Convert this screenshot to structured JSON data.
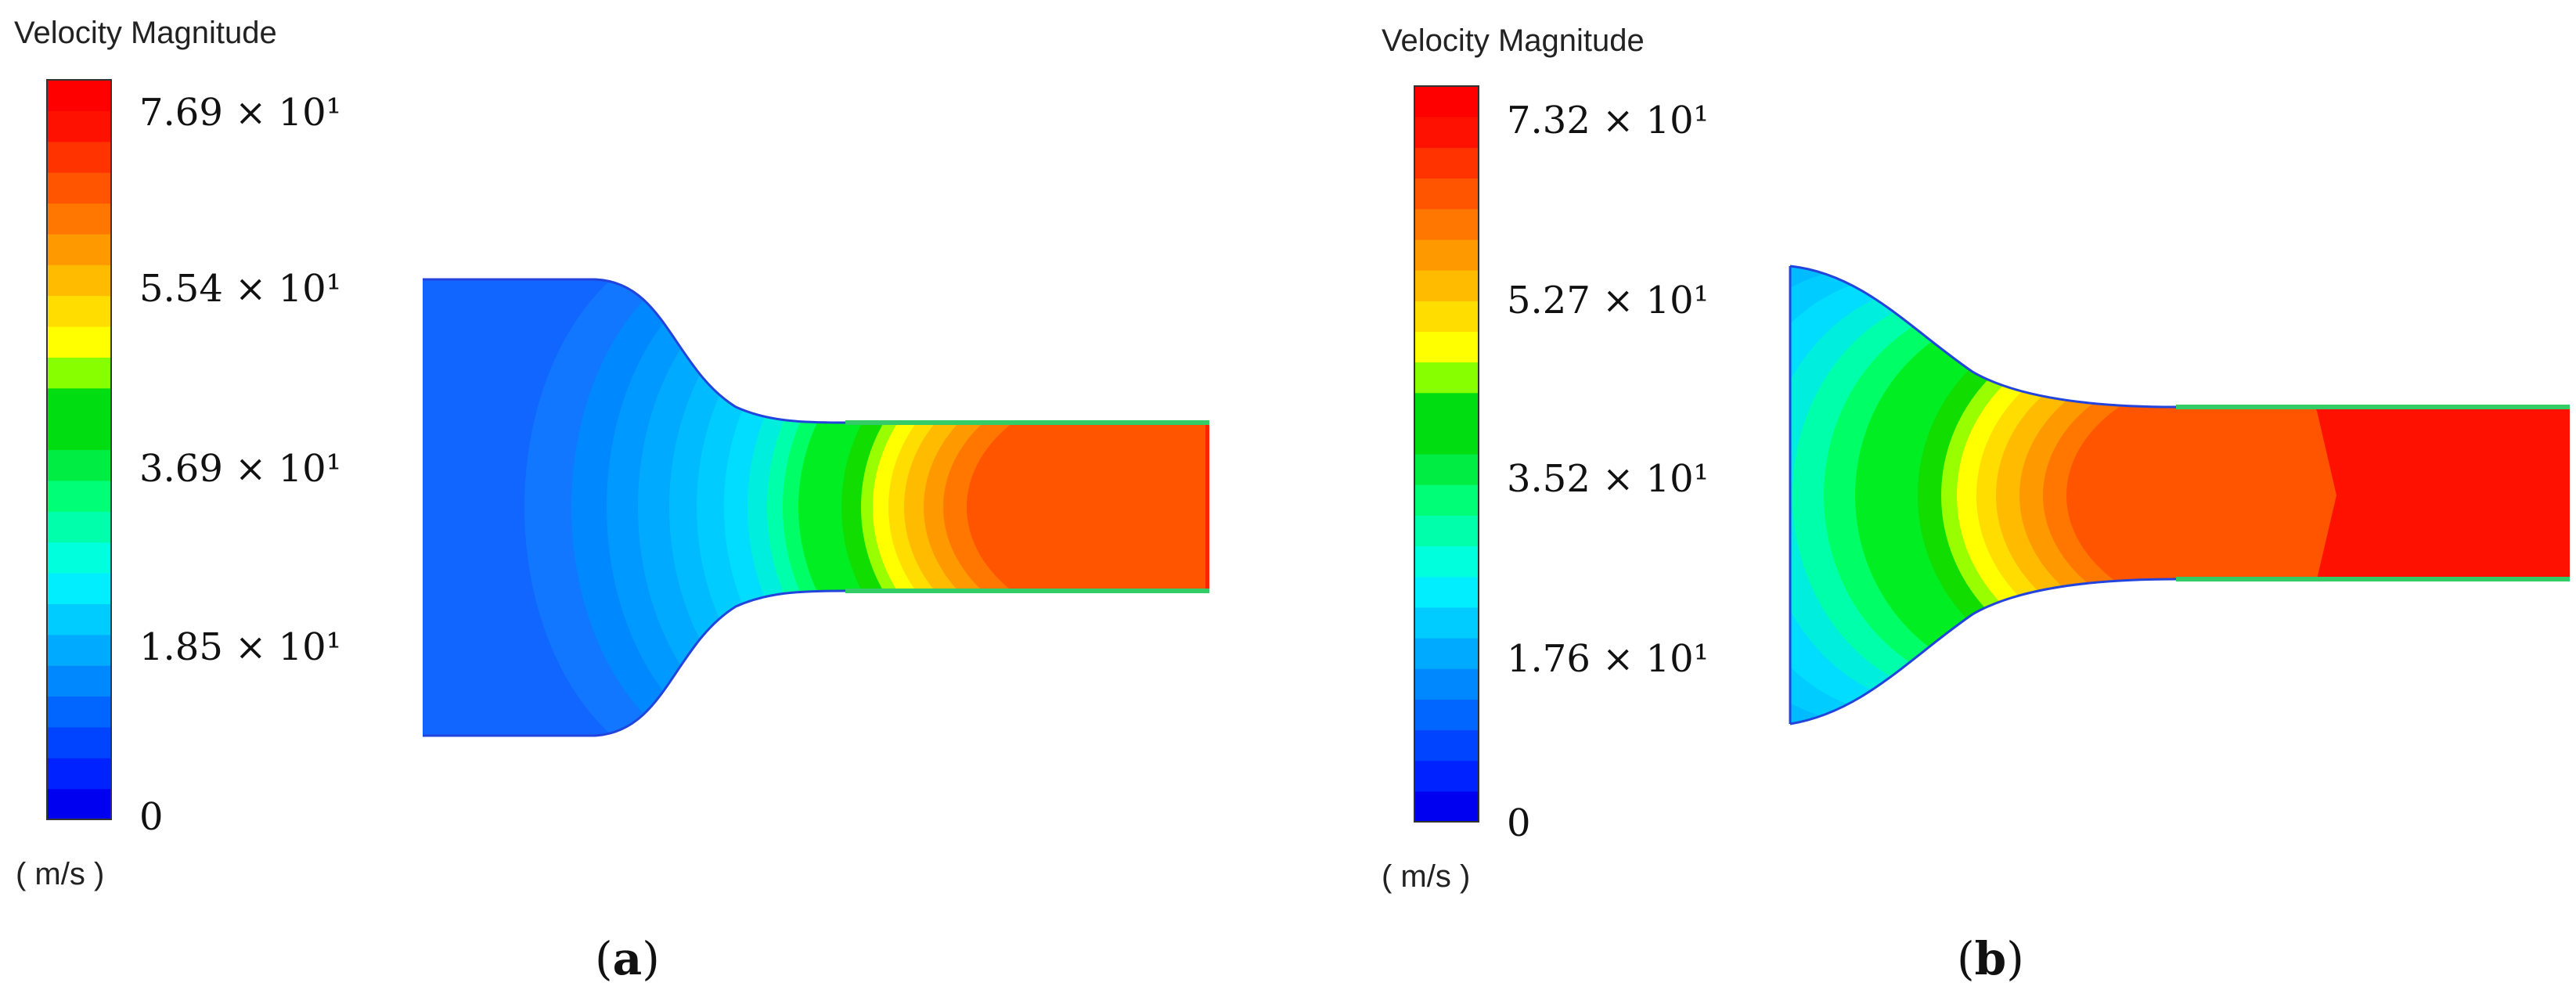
{
  "colormap": [
    "#0000f0",
    "#0022ff",
    "#0044ff",
    "#0066ff",
    "#0088ff",
    "#00aaff",
    "#00ccff",
    "#00eeff",
    "#00ffdd",
    "#00ffaa",
    "#00ff77",
    "#00ee44",
    "#00dd11",
    "#00dd11",
    "#88ff00",
    "#ffff00",
    "#ffdd00",
    "#ffbb00",
    "#ff9900",
    "#ff7700",
    "#ff5500",
    "#ff3300",
    "#ff1100",
    "#ff0000"
  ],
  "panels": [
    {
      "title": "Velocity Magnitude",
      "unit": "( m/s )",
      "legend_ticks": [
        {
          "label": "7.69 × 10¹",
          "value": 76.9
        },
        {
          "label": "5.54 × 10¹",
          "value": 55.4
        },
        {
          "label": "3.69 × 10¹",
          "value": 36.9
        },
        {
          "label": "1.85 × 10¹",
          "value": 18.5
        },
        {
          "label": "0",
          "value": 0
        }
      ],
      "caption": {
        "open": "(",
        "letter": "a",
        "close": ")"
      }
    },
    {
      "title": "Velocity Magnitude",
      "unit": "( m/s )",
      "legend_ticks": [
        {
          "label": "7.32 × 10¹",
          "value": 73.2
        },
        {
          "label": "5.27 × 10¹",
          "value": 52.7
        },
        {
          "label": "3.52 × 10¹",
          "value": 35.2
        },
        {
          "label": "1.76 × 10¹",
          "value": 17.6
        },
        {
          "label": "0",
          "value": 0
        }
      ],
      "caption": {
        "open": "(",
        "letter": "b",
        "close": ")"
      }
    }
  ]
}
